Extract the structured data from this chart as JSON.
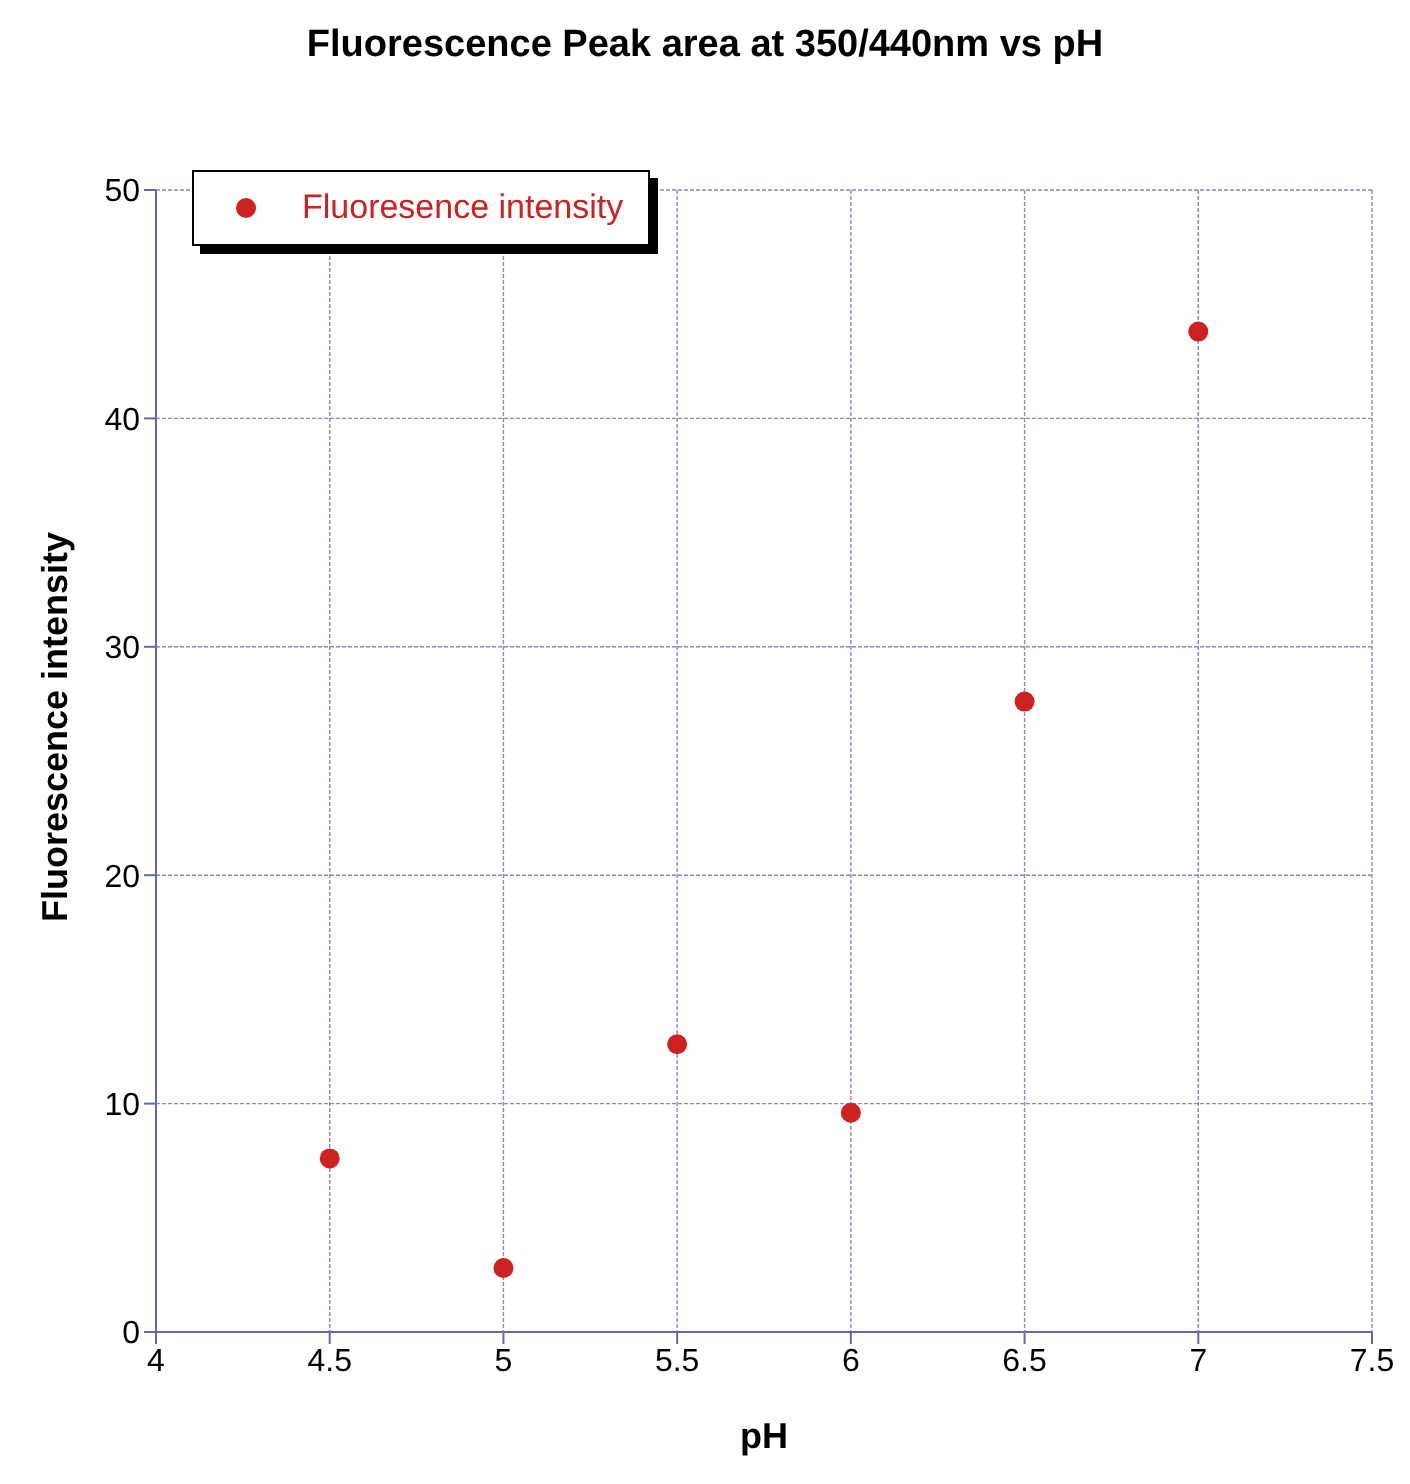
{
  "chart_data": {
    "type": "scatter",
    "title": "Fluorescence Peak area at 350/440nm vs pH",
    "xlabel": "pH",
    "ylabel": "Fluorescence intensity",
    "x": [
      4.5,
      5,
      5.5,
      6,
      6.5,
      7
    ],
    "series": [
      {
        "name": "Fluoresence intensity",
        "color": "#cc2222",
        "values": [
          7.6,
          2.8,
          12.6,
          9.6,
          27.6,
          43.8
        ]
      }
    ],
    "xlim": [
      4,
      7.5
    ],
    "xticks": [
      4,
      4.5,
      5,
      5.5,
      6,
      6.5,
      7,
      7.5
    ],
    "ylim": [
      0,
      50
    ],
    "yticks": [
      0,
      10,
      20,
      30,
      40,
      50
    ],
    "grid": true,
    "legend": "top left",
    "marker": "circle"
  }
}
